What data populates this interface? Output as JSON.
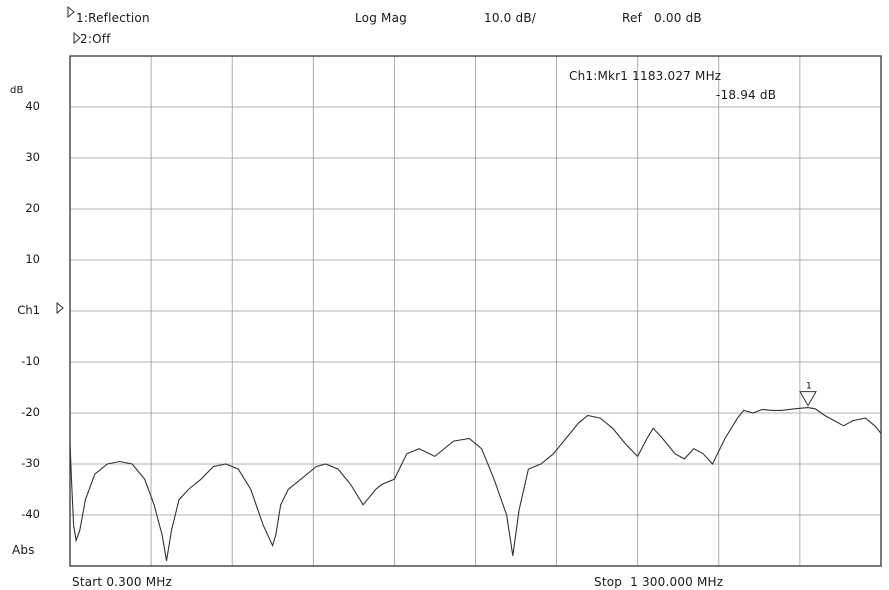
{
  "header": {
    "channel1_label": "1:Reflection",
    "channel2_label": "2:Off",
    "format": "Log Mag",
    "scale": "10.0 dB/",
    "ref": "Ref   0.00 dB"
  },
  "marker": {
    "readout_line1": "Ch1:Mkr1 1183.027 MHz",
    "readout_line2": "-18.94 dB",
    "number_label": "1"
  },
  "side": {
    "unit_label": "dB",
    "channel_label": "Ch1",
    "abs_label": "Abs"
  },
  "footer": {
    "start_label": "Start 0.300 MHz",
    "stop_label": "Stop  1 300.000 MHz"
  },
  "colors": {
    "trace": "#333333",
    "grid": "#9a9a9a",
    "frame": "#333333"
  },
  "chart_data": {
    "type": "line",
    "title": "",
    "xlabel": "",
    "ylabel": "dB",
    "xlim": [
      0.3,
      1300.0
    ],
    "ylim": [
      -50,
      50
    ],
    "y_ticks": [
      {
        "value": 40,
        "label": "40"
      },
      {
        "value": 30,
        "label": "30"
      },
      {
        "value": 20,
        "label": "20"
      },
      {
        "value": 10,
        "label": "10"
      },
      {
        "value": 0,
        "label": "Ch1"
      },
      {
        "value": -10,
        "label": "-10"
      },
      {
        "value": -20,
        "label": "-20"
      },
      {
        "value": -30,
        "label": "-30"
      },
      {
        "value": -40,
        "label": "-40"
      }
    ],
    "grid": true,
    "x_divisions": 10,
    "y_divisions": 10,
    "marker": {
      "x": 1183.027,
      "y": -18.94
    },
    "series": [
      {
        "name": "",
        "x": [
          0.3,
          3,
          6,
          10,
          16,
          25,
          40,
          60,
          80,
          100,
          120,
          135,
          148,
          155,
          163,
          175,
          190,
          210,
          230,
          250,
          270,
          290,
          310,
          325,
          330,
          338,
          350,
          370,
          395,
          410,
          430,
          450,
          470,
          490,
          500,
          520,
          540,
          560,
          585,
          615,
          640,
          660,
          680,
          700,
          710,
          720,
          735,
          755,
          775,
          795,
          815,
          830,
          850,
          870,
          890,
          910,
          925,
          935,
          950,
          970,
          985,
          1000,
          1015,
          1030,
          1050,
          1070,
          1080,
          1095,
          1110,
          1125,
          1140,
          1160,
          1183,
          1195,
          1210,
          1225,
          1240,
          1255,
          1275,
          1290,
          1300
        ],
        "y": [
          -26,
          -34,
          -42,
          -45,
          -43,
          -37,
          -32,
          -30,
          -29.5,
          -30,
          -33,
          -38,
          -44,
          -49,
          -43,
          -37,
          -35,
          -33,
          -30.5,
          -30,
          -31,
          -35,
          -42,
          -46,
          -44,
          -38,
          -35,
          -33,
          -30.5,
          -30,
          -31,
          -34,
          -38,
          -35,
          -34,
          -33,
          -28,
          -27,
          -28.5,
          -25.5,
          -25,
          -27,
          -33,
          -40,
          -48,
          -39,
          -31,
          -30,
          -28,
          -25,
          -22,
          -20.5,
          -21,
          -23,
          -26,
          -28.5,
          -25,
          -23,
          -25,
          -28,
          -29,
          -27,
          -28,
          -30,
          -25,
          -21,
          -19.5,
          -20,
          -19.3,
          -19.5,
          -19.5,
          -19.2,
          -18.94,
          -19.2,
          -20.5,
          -21.5,
          -22.5,
          -21.5,
          -21,
          -22.5,
          -24
        ]
      }
    ]
  }
}
